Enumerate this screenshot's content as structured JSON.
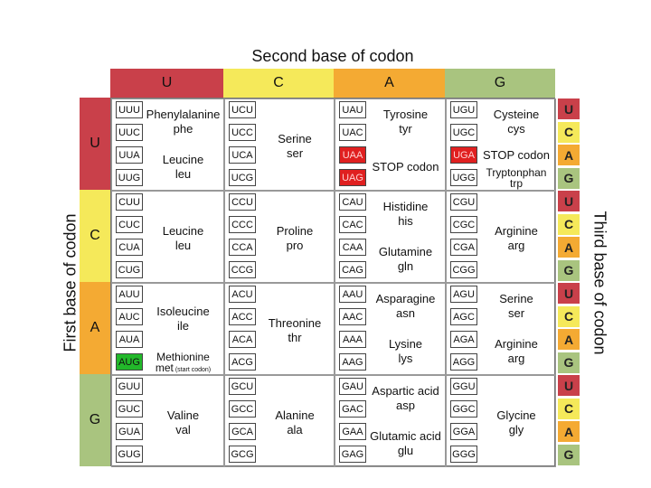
{
  "title": "Second base of codon",
  "first_base_label": "First base of codon",
  "third_base_label": "Third base of codon",
  "colors": {
    "U": "#c9404a",
    "C": "#f5e95a",
    "A": "#f4aa33",
    "G": "#a9c47f",
    "stop_highlight": "#e02020",
    "start_highlight": "#22b82a"
  },
  "columns": [
    "U",
    "C",
    "A",
    "G"
  ],
  "rows": [
    "U",
    "C",
    "A",
    "G"
  ],
  "third_bases": [
    "U",
    "C",
    "A",
    "G",
    "U",
    "C",
    "A",
    "G",
    "U",
    "C",
    "A",
    "G",
    "U",
    "C",
    "A",
    "G"
  ],
  "blocks": [
    [
      {
        "codons": [
          "UUU",
          "UUC",
          "UUA",
          "UUG"
        ],
        "aminos": [
          {
            "name": "Phenylalanine",
            "abbr": "phe",
            "span": [
              0,
              1
            ]
          },
          {
            "name": "Leucine",
            "abbr": "leu",
            "span": [
              2,
              3
            ]
          }
        ]
      },
      {
        "codons": [
          "UCU",
          "UCC",
          "UCA",
          "UCG"
        ],
        "aminos": [
          {
            "name": "Serine",
            "abbr": "ser",
            "span": [
              0,
              3
            ]
          }
        ]
      },
      {
        "codons": [
          "UAU",
          "UAC",
          "UAA",
          "UAG"
        ],
        "aminos": [
          {
            "name": "Tyrosine",
            "abbr": "tyr",
            "span": [
              0,
              1
            ]
          },
          {
            "name": "STOP codon",
            "abbr": "",
            "span": [
              2,
              3
            ]
          }
        ]
      },
      {
        "codons": [
          "UGU",
          "UGC",
          "UGA",
          "UGG"
        ],
        "aminos": [
          {
            "name": "Cysteine",
            "abbr": "cys",
            "span": [
              0,
              1
            ]
          },
          {
            "name": "STOP codon",
            "abbr": "",
            "span": [
              2,
              2
            ]
          },
          {
            "name": "Tryptonphan",
            "abbr": "trp",
            "span": [
              3,
              3
            ]
          }
        ]
      }
    ],
    [
      {
        "codons": [
          "CUU",
          "CUC",
          "CUA",
          "CUG"
        ],
        "aminos": [
          {
            "name": "Leucine",
            "abbr": "leu",
            "span": [
              0,
              3
            ]
          }
        ]
      },
      {
        "codons": [
          "CCU",
          "CCC",
          "CCA",
          "CCG"
        ],
        "aminos": [
          {
            "name": "Proline",
            "abbr": "pro",
            "span": [
              0,
              3
            ]
          }
        ]
      },
      {
        "codons": [
          "CAU",
          "CAC",
          "CAA",
          "CAG"
        ],
        "aminos": [
          {
            "name": "Histidine",
            "abbr": "his",
            "span": [
              0,
              1
            ]
          },
          {
            "name": "Glutamine",
            "abbr": "gln",
            "span": [
              2,
              3
            ]
          }
        ]
      },
      {
        "codons": [
          "CGU",
          "CGC",
          "CGA",
          "CGG"
        ],
        "aminos": [
          {
            "name": "Arginine",
            "abbr": "arg",
            "span": [
              0,
              3
            ]
          }
        ]
      }
    ],
    [
      {
        "codons": [
          "AUU",
          "AUC",
          "AUA",
          "AUG"
        ],
        "aminos": [
          {
            "name": "Isoleucine",
            "abbr": "ile",
            "span": [
              0,
              2
            ]
          },
          {
            "name": "Methionine",
            "abbr": "met",
            "note": "(start codon)",
            "span": [
              3,
              3
            ]
          }
        ]
      },
      {
        "codons": [
          "ACU",
          "ACC",
          "ACA",
          "ACG"
        ],
        "aminos": [
          {
            "name": "Threonine",
            "abbr": "thr",
            "span": [
              0,
              3
            ]
          }
        ]
      },
      {
        "codons": [
          "AAU",
          "AAC",
          "AAA",
          "AAG"
        ],
        "aminos": [
          {
            "name": "Asparagine",
            "abbr": "asn",
            "span": [
              0,
              1
            ]
          },
          {
            "name": "Lysine",
            "abbr": "lys",
            "span": [
              2,
              3
            ]
          }
        ]
      },
      {
        "codons": [
          "AGU",
          "AGC",
          "AGA",
          "AGG"
        ],
        "aminos": [
          {
            "name": "Serine",
            "abbr": "ser",
            "span": [
              0,
              1
            ]
          },
          {
            "name": "Arginine",
            "abbr": "arg",
            "span": [
              2,
              3
            ]
          }
        ]
      }
    ],
    [
      {
        "codons": [
          "GUU",
          "GUC",
          "GUA",
          "GUG"
        ],
        "aminos": [
          {
            "name": "Valine",
            "abbr": "val",
            "span": [
              0,
              3
            ]
          }
        ]
      },
      {
        "codons": [
          "GCU",
          "GCC",
          "GCA",
          "GCG"
        ],
        "aminos": [
          {
            "name": "Alanine",
            "abbr": "ala",
            "span": [
              0,
              3
            ]
          }
        ]
      },
      {
        "codons": [
          "GAU",
          "GAC",
          "GAA",
          "GAG"
        ],
        "aminos": [
          {
            "name": "Aspartic acid",
            "abbr": "asp",
            "span": [
              0,
              1
            ]
          },
          {
            "name": "Glutamic acid",
            "abbr": "glu",
            "span": [
              2,
              3
            ]
          }
        ]
      },
      {
        "codons": [
          "GGU",
          "GGC",
          "GGA",
          "GGG"
        ],
        "aminos": [
          {
            "name": "Glycine",
            "abbr": "gly",
            "span": [
              0,
              3
            ]
          }
        ]
      }
    ]
  ],
  "stop_codons": [
    "UAA",
    "UAG",
    "UGA"
  ],
  "start_codons": [
    "AUG"
  ]
}
